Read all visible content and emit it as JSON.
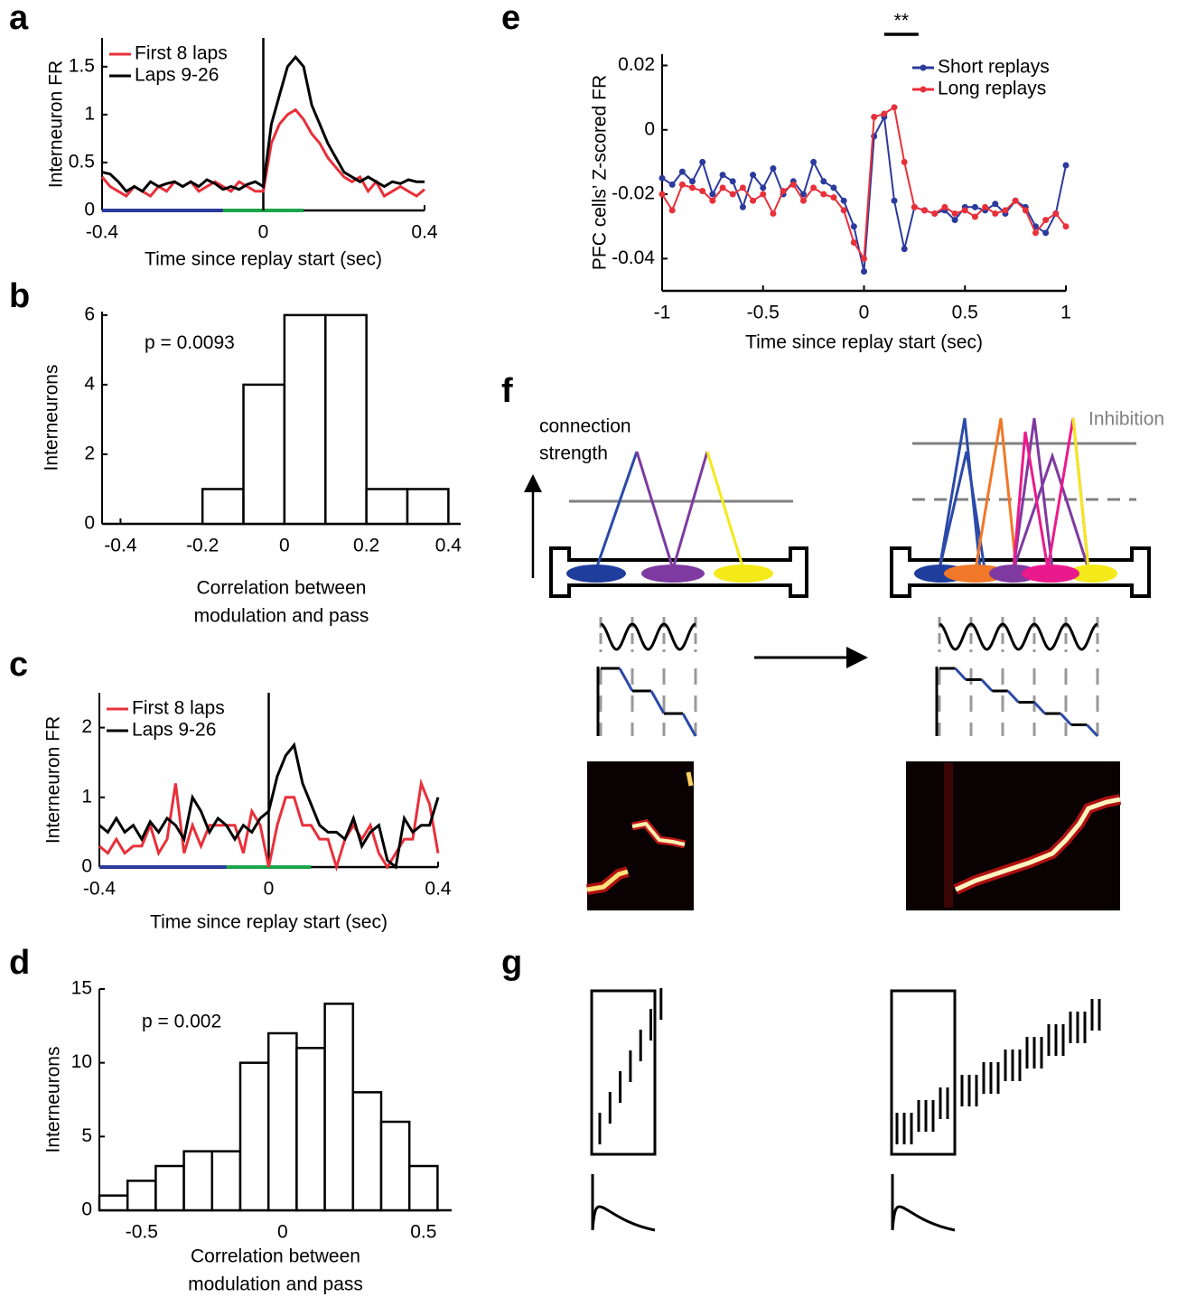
{
  "chart_data": [
    {
      "panel": "a",
      "type": "line",
      "ylabel": "Interneuron FR",
      "xlabel": "Time since replay start (sec)",
      "x": [
        -0.4,
        -0.38,
        -0.36,
        -0.34,
        -0.32,
        -0.3,
        -0.28,
        -0.26,
        -0.24,
        -0.22,
        -0.2,
        -0.18,
        -0.16,
        -0.14,
        -0.12,
        -0.1,
        -0.08,
        -0.06,
        -0.04,
        -0.02,
        0,
        0.02,
        0.04,
        0.06,
        0.08,
        0.1,
        0.12,
        0.14,
        0.16,
        0.18,
        0.2,
        0.22,
        0.24,
        0.26,
        0.28,
        0.3,
        0.32,
        0.34,
        0.36,
        0.38,
        0.4
      ],
      "series": [
        {
          "name": "First 8 laps",
          "color": "#e8303a",
          "values": [
            0.35,
            0.25,
            0.2,
            0.15,
            0.25,
            0.2,
            0.15,
            0.25,
            0.2,
            0.3,
            0.25,
            0.3,
            0.2,
            0.25,
            0.3,
            0.25,
            0.2,
            0.3,
            0.25,
            0.2,
            0.2,
            0.7,
            0.9,
            1.0,
            1.05,
            0.95,
            0.8,
            0.7,
            0.55,
            0.45,
            0.35,
            0.3,
            0.35,
            0.2,
            0.3,
            0.15,
            0.2,
            0.25,
            0.2,
            0.15,
            0.22
          ]
        },
        {
          "name": "Laps 9-26",
          "color": "#000000",
          "values": [
            0.4,
            0.38,
            0.3,
            0.2,
            0.25,
            0.2,
            0.3,
            0.25,
            0.28,
            0.3,
            0.25,
            0.3,
            0.25,
            0.32,
            0.28,
            0.22,
            0.25,
            0.22,
            0.27,
            0.3,
            0.25,
            0.9,
            1.2,
            1.5,
            1.6,
            1.5,
            1.1,
            0.9,
            0.7,
            0.55,
            0.4,
            0.35,
            0.3,
            0.35,
            0.3,
            0.25,
            0.3,
            0.28,
            0.32,
            0.3,
            0.3
          ]
        }
      ],
      "xlim": [
        -0.4,
        0.4
      ],
      "ylim": [
        0,
        1.8
      ],
      "xticks": [
        -0.4,
        0,
        0.4
      ],
      "yticks": [
        0,
        0.5,
        1,
        1.5
      ],
      "legend": "upper left",
      "vline": 0,
      "x_spans": [
        {
          "from": -0.4,
          "to": -0.1,
          "color": "#2b3a9c"
        },
        {
          "from": -0.1,
          "to": 0.1,
          "color": "#1aa64a"
        }
      ]
    },
    {
      "panel": "b",
      "type": "histogram",
      "ylabel": "Interneurons",
      "xlabel": [
        "Correlation between",
        "modulation and pass"
      ],
      "bins": [
        -0.4,
        -0.3,
        -0.2,
        -0.1,
        0,
        0.1,
        0.2,
        0.3,
        0.4
      ],
      "values": [
        0,
        0,
        1,
        4,
        6,
        6,
        1,
        1
      ],
      "annotation": "p = 0.0093",
      "xlim": [
        -0.445,
        0.43
      ],
      "ylim": [
        0,
        6.1
      ],
      "xticks": [
        -0.4,
        -0.2,
        0,
        0.2,
        0.4
      ],
      "yticks": [
        0,
        2,
        4,
        6
      ]
    },
    {
      "panel": "c",
      "type": "line",
      "ylabel": "Interneuron FR",
      "xlabel": "Time since replay start (sec)",
      "x": [
        -0.4,
        -0.38,
        -0.36,
        -0.34,
        -0.32,
        -0.3,
        -0.28,
        -0.26,
        -0.24,
        -0.22,
        -0.2,
        -0.18,
        -0.16,
        -0.14,
        -0.12,
        -0.1,
        -0.08,
        -0.06,
        -0.04,
        -0.02,
        0,
        0.02,
        0.04,
        0.06,
        0.08,
        0.1,
        0.12,
        0.14,
        0.16,
        0.18,
        0.2,
        0.22,
        0.24,
        0.26,
        0.28,
        0.3,
        0.32,
        0.34,
        0.36,
        0.38,
        0.4
      ],
      "series": [
        {
          "name": "First 8 laps",
          "color": "#e8303a",
          "values": [
            0.3,
            0.2,
            0.4,
            0.2,
            0.3,
            0.3,
            0.6,
            0.2,
            0.4,
            1.2,
            0.2,
            0.6,
            0.3,
            0.6,
            0.6,
            0.6,
            0.6,
            0.2,
            0.8,
            0.6,
            0.0,
            0.6,
            1.0,
            1.0,
            0.6,
            0.6,
            0.4,
            0.4,
            0.0,
            0.4,
            0.6,
            0.4,
            0.6,
            0.2,
            0.0,
            0.2,
            0.4,
            0.4,
            1.2,
            0.9,
            0.2
          ]
        },
        {
          "name": "Laps 9-26",
          "color": "#000000",
          "values": [
            0.6,
            0.5,
            0.7,
            0.5,
            0.6,
            0.4,
            0.65,
            0.5,
            0.7,
            0.6,
            0.4,
            1.0,
            0.8,
            0.5,
            0.7,
            0.6,
            0.4,
            0.6,
            0.5,
            0.7,
            0.8,
            1.3,
            1.6,
            1.75,
            1.2,
            0.9,
            0.6,
            0.5,
            0.5,
            0.4,
            0.7,
            0.3,
            0.5,
            0.6,
            0.1,
            0.0,
            0.7,
            0.5,
            0.6,
            0.6,
            1.0
          ]
        }
      ],
      "xlim": [
        -0.4,
        0.4
      ],
      "ylim": [
        0,
        2.5
      ],
      "xticks": [
        -0.4,
        0,
        0.4
      ],
      "yticks": [
        0,
        1,
        2
      ],
      "legend": "upper left",
      "vline": 0,
      "x_spans": [
        {
          "from": -0.4,
          "to": -0.1,
          "color": "#2b3a9c"
        },
        {
          "from": -0.1,
          "to": 0.1,
          "color": "#1aa64a"
        }
      ]
    },
    {
      "panel": "d",
      "type": "histogram",
      "ylabel": "Interneurons",
      "xlabel": [
        "Correlation between",
        "modulation and pass"
      ],
      "bins": [
        -0.65,
        -0.55,
        -0.45,
        -0.35,
        -0.25,
        -0.15,
        -0.05,
        0.05,
        0.15,
        0.25,
        0.35,
        0.45,
        0.55
      ],
      "values": [
        1,
        2,
        3,
        4,
        4,
        10,
        12,
        11,
        14,
        8,
        6,
        3
      ],
      "annotation": "p = 0.002",
      "xlim": [
        -0.65,
        0.6
      ],
      "ylim": [
        0,
        15
      ],
      "xticks": [
        -0.5,
        0,
        0.5
      ],
      "yticks": [
        0,
        5,
        10,
        15
      ]
    },
    {
      "panel": "e",
      "type": "line",
      "ylabel": "PFC cells’ Z-scored FR",
      "xlabel": "Time since replay start (sec)",
      "markers": true,
      "x": [
        -1,
        -0.95,
        -0.9,
        -0.85,
        -0.8,
        -0.75,
        -0.7,
        -0.65,
        -0.6,
        -0.55,
        -0.5,
        -0.45,
        -0.4,
        -0.35,
        -0.3,
        -0.25,
        -0.2,
        -0.15,
        -0.1,
        -0.05,
        0,
        0.05,
        0.1,
        0.15,
        0.2,
        0.25,
        0.3,
        0.35,
        0.4,
        0.45,
        0.5,
        0.55,
        0.6,
        0.65,
        0.7,
        0.75,
        0.8,
        0.85,
        0.9,
        0.95,
        1
      ],
      "series": [
        {
          "name": "Short replays",
          "color": "#2b3a9c",
          "values": [
            -0.015,
            -0.017,
            -0.013,
            -0.016,
            -0.01,
            -0.02,
            -0.014,
            -0.016,
            -0.024,
            -0.014,
            -0.018,
            -0.012,
            -0.02,
            -0.016,
            -0.02,
            -0.01,
            -0.016,
            -0.018,
            -0.022,
            -0.03,
            -0.044,
            -0.002,
            0.004,
            -0.022,
            -0.037,
            -0.024,
            -0.025,
            -0.026,
            -0.025,
            -0.028,
            -0.024,
            -0.024,
            -0.025,
            -0.023,
            -0.026,
            -0.022,
            -0.024,
            -0.03,
            -0.032,
            -0.026,
            -0.011
          ]
        },
        {
          "name": "Long replays",
          "color": "#e8303a",
          "values": [
            -0.02,
            -0.025,
            -0.017,
            -0.018,
            -0.019,
            -0.022,
            -0.018,
            -0.02,
            -0.018,
            -0.022,
            -0.02,
            -0.026,
            -0.019,
            -0.017,
            -0.022,
            -0.018,
            -0.02,
            -0.021,
            -0.025,
            -0.035,
            -0.04,
            0.004,
            0.005,
            0.007,
            -0.01,
            -0.024,
            -0.025,
            -0.026,
            -0.024,
            -0.026,
            -0.025,
            -0.027,
            -0.024,
            -0.026,
            -0.025,
            -0.022,
            -0.025,
            -0.032,
            -0.028,
            -0.026,
            -0.03
          ]
        }
      ],
      "xlim": [
        -1,
        1
      ],
      "ylim": [
        -0.05,
        0.0235
      ],
      "xticks": [
        -1,
        -0.5,
        0,
        0.5,
        1
      ],
      "yticks": [
        -0.04,
        -0.02,
        0,
        0.02
      ],
      "legend": "upper right",
      "significance": {
        "label": "**",
        "xlim": [
          0.1,
          0.27
        ]
      }
    }
  ],
  "diagrams": [
    {
      "panel": "f",
      "labels": [
        "connection",
        "strength",
        "Inhibition"
      ]
    },
    {
      "panel": "g"
    }
  ]
}
